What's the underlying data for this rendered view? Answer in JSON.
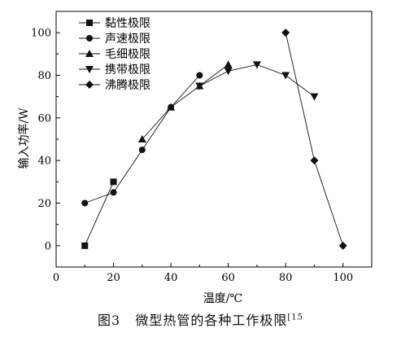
{
  "chart_data": {
    "type": "line",
    "xlabel": "温度/℃",
    "ylabel": "输入功率/W",
    "xlim": [
      0,
      110
    ],
    "ylim": [
      -10,
      110
    ],
    "x_ticks": [
      0,
      20,
      40,
      60,
      80,
      100
    ],
    "y_ticks": [
      0,
      20,
      40,
      60,
      80,
      100
    ],
    "x_tick_labels": [
      "0",
      "20",
      "40",
      "60",
      "80",
      "100"
    ],
    "y_tick_labels": [
      "0",
      "20",
      "40",
      "60",
      "80",
      "100"
    ],
    "legend_position": "top-left",
    "grid": false,
    "series": [
      {
        "name": "黏性极限",
        "marker": "square",
        "points": [
          [
            10,
            0
          ],
          [
            20,
            30
          ]
        ]
      },
      {
        "name": "声速极限",
        "marker": "circle",
        "points": [
          [
            10,
            20
          ],
          [
            20,
            25
          ],
          [
            30,
            45
          ],
          [
            40,
            65
          ],
          [
            50,
            80
          ]
        ]
      },
      {
        "name": "毛细极限",
        "marker": "triangle-up",
        "points": [
          [
            30,
            50
          ],
          [
            40,
            65
          ],
          [
            50,
            75
          ],
          [
            60,
            85
          ]
        ]
      },
      {
        "name": "携带极限",
        "marker": "triangle-down",
        "points": [
          [
            50,
            75
          ],
          [
            60,
            82
          ],
          [
            70,
            85
          ],
          [
            80,
            80
          ],
          [
            90,
            70
          ]
        ]
      },
      {
        "name": "沸腾极限",
        "marker": "diamond",
        "points": [
          [
            80,
            100
          ],
          [
            90,
            40
          ],
          [
            100,
            0
          ]
        ]
      }
    ]
  },
  "caption": {
    "figure_no": "图3",
    "text": "微型热管的各种工作极限",
    "ref": "[15"
  }
}
